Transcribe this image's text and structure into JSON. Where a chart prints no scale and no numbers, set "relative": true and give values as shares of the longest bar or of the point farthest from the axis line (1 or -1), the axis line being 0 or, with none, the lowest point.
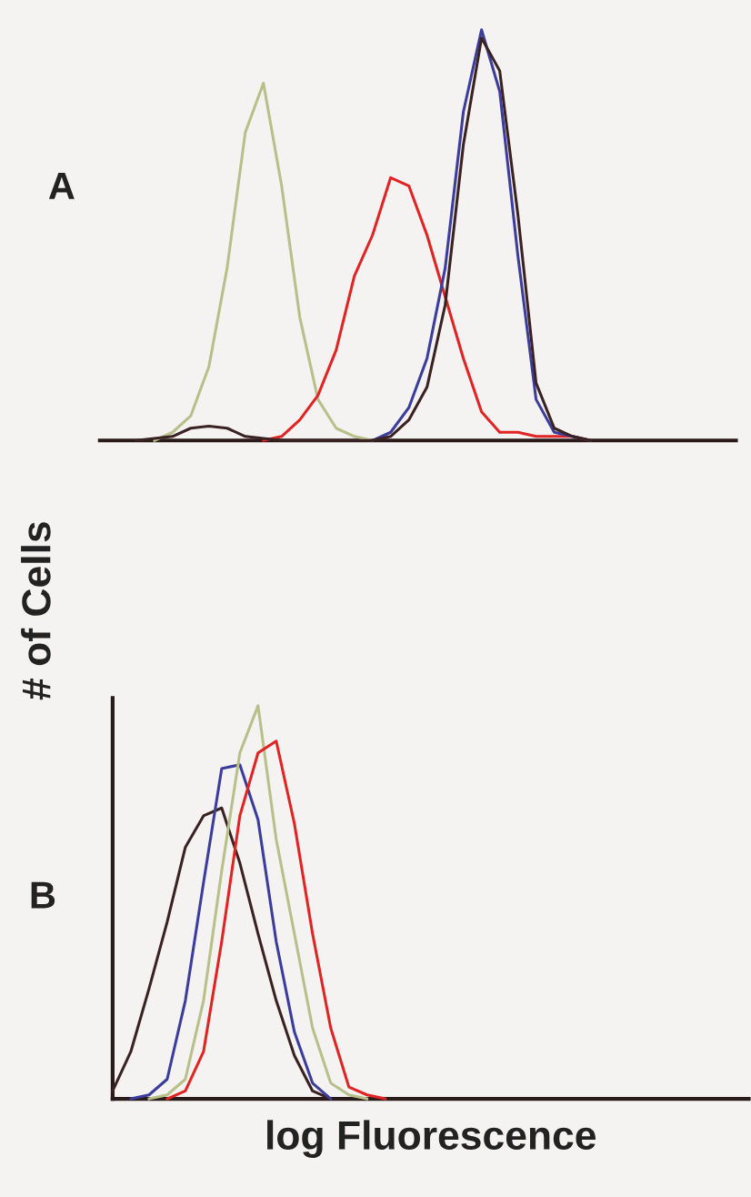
{
  "chart_data": [
    {
      "type": "line",
      "title": "A",
      "ylabel": "# of Cells",
      "relative": true,
      "tick_labels": false,
      "categories": [
        null,
        null,
        null,
        null,
        null,
        null,
        null,
        null,
        null,
        null,
        null,
        null,
        null,
        null,
        null,
        null,
        null,
        null,
        null,
        null,
        null,
        null,
        null,
        null,
        null,
        null,
        null,
        null,
        null,
        null,
        null,
        null,
        null,
        null,
        null,
        null
      ],
      "series": [
        {
          "color": "#b8c08a",
          "values": [
            null,
            null,
            null,
            0,
            0.02,
            0.06,
            0.18,
            0.42,
            0.75,
            0.87,
            0.62,
            0.3,
            0.1,
            0.03,
            0.01,
            0,
            null,
            null,
            null,
            null,
            null,
            null,
            null,
            null,
            null,
            null,
            null,
            null,
            null,
            null,
            null,
            null,
            null,
            null,
            null,
            null
          ]
        },
        {
          "color": "#e02424",
          "values": [
            null,
            null,
            null,
            null,
            null,
            null,
            null,
            null,
            null,
            0,
            0.01,
            0.05,
            0.11,
            0.22,
            0.4,
            0.5,
            0.64,
            0.62,
            0.5,
            0.35,
            0.2,
            0.07,
            0.02,
            0.02,
            0.01,
            0.01,
            0.01,
            0,
            null,
            null,
            null,
            null,
            null,
            null,
            null,
            null
          ]
        },
        {
          "color": "#3c3c9c",
          "values": [
            null,
            null,
            null,
            null,
            null,
            null,
            null,
            null,
            null,
            null,
            null,
            null,
            null,
            null,
            null,
            0,
            0.02,
            0.08,
            0.2,
            0.42,
            0.8,
            1.0,
            0.85,
            0.45,
            0.1,
            0.02,
            0.01,
            0,
            null,
            null,
            null,
            null,
            null,
            null,
            null,
            null
          ]
        },
        {
          "color": "#3a2222",
          "values": [
            null,
            null,
            0,
            0.005,
            0.01,
            0.03,
            0.035,
            0.03,
            0.01,
            0.005,
            0,
            0,
            0,
            0,
            0,
            0,
            0.01,
            0.05,
            0.13,
            0.33,
            0.72,
            0.98,
            0.9,
            0.55,
            0.14,
            0.03,
            0.01,
            0,
            null,
            null,
            null,
            null,
            null,
            null,
            null,
            null
          ]
        }
      ]
    },
    {
      "type": "line",
      "title": "B",
      "xlabel": "log Fluorescence",
      "relative": true,
      "tick_labels": false,
      "categories": [
        null,
        null,
        null,
        null,
        null,
        null,
        null,
        null,
        null,
        null,
        null,
        null,
        null,
        null,
        null,
        null,
        null,
        null,
        null,
        null,
        null,
        null,
        null,
        null,
        null,
        null,
        null,
        null,
        null,
        null,
        null,
        null,
        null,
        null,
        null,
        null
      ],
      "series": [
        {
          "color": "#3a2222",
          "values": [
            0.02,
            0.12,
            0.28,
            0.45,
            0.64,
            0.72,
            0.74,
            0.6,
            0.42,
            0.25,
            0.11,
            0.02,
            0,
            null,
            null,
            null,
            null,
            null,
            null,
            null,
            null,
            null,
            null,
            null,
            null,
            null,
            null,
            null,
            null,
            null,
            null,
            null,
            null,
            null,
            null,
            null
          ]
        },
        {
          "color": "#3c3c9c",
          "values": [
            null,
            0,
            0.01,
            0.05,
            0.25,
            0.55,
            0.84,
            0.85,
            0.71,
            0.4,
            0.17,
            0.04,
            0,
            null,
            null,
            null,
            null,
            null,
            null,
            null,
            null,
            null,
            null,
            null,
            null,
            null,
            null,
            null,
            null,
            null,
            null,
            null,
            null,
            null,
            null,
            null
          ]
        },
        {
          "color": "#b8c08a",
          "values": [
            null,
            null,
            0,
            0.01,
            0.05,
            0.25,
            0.58,
            0.88,
            1.0,
            0.66,
            0.42,
            0.18,
            0.04,
            0.01,
            0,
            null,
            null,
            null,
            null,
            null,
            null,
            null,
            null,
            null,
            null,
            null,
            null,
            null,
            null,
            null,
            null,
            null,
            null,
            null,
            null,
            null
          ]
        },
        {
          "color": "#e02424",
          "values": [
            null,
            null,
            null,
            0,
            0.02,
            0.12,
            0.4,
            0.72,
            0.88,
            0.91,
            0.7,
            0.42,
            0.18,
            0.03,
            0.01,
            0,
            null,
            null,
            null,
            null,
            null,
            null,
            null,
            null,
            null,
            null,
            null,
            null,
            null,
            null,
            null,
            null,
            null,
            null,
            null,
            null
          ]
        }
      ]
    }
  ]
}
